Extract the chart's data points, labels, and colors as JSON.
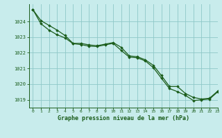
{
  "title": "Graphe pression niveau de la mer (hPa)",
  "background_color": "#c8ecec",
  "grid_color": "#8ec8c8",
  "line_color": "#1a5c1a",
  "marker_color": "#1a5c1a",
  "xlim": [
    -0.5,
    23
  ],
  "ylim": [
    1018.5,
    1025.1
  ],
  "yticks": [
    1019,
    1020,
    1021,
    1022,
    1023,
    1024
  ],
  "xticks": [
    0,
    1,
    2,
    3,
    4,
    5,
    6,
    7,
    8,
    9,
    10,
    11,
    12,
    13,
    14,
    15,
    16,
    17,
    18,
    19,
    20,
    21,
    22,
    23
  ],
  "series1_x": [
    0,
    1,
    2,
    3,
    4,
    5,
    6,
    7,
    8,
    9,
    10,
    11,
    12,
    13,
    14,
    15,
    16,
    17,
    18,
    19,
    20,
    21,
    22,
    23
  ],
  "series1_y": [
    1024.75,
    1024.05,
    1023.75,
    1023.45,
    1023.1,
    1022.6,
    1022.6,
    1022.5,
    1022.45,
    1022.55,
    1022.65,
    1022.35,
    1021.8,
    1021.75,
    1021.55,
    1021.2,
    1020.55,
    1019.85,
    1019.85,
    1019.4,
    1019.15,
    1019.05,
    1019.1,
    1019.55
  ],
  "series2_x": [
    0,
    1,
    2,
    3,
    4,
    5,
    6,
    7,
    8,
    9,
    10,
    11,
    12,
    13,
    14,
    15,
    16,
    17,
    18,
    19,
    20,
    21,
    22,
    23
  ],
  "series2_y": [
    1024.75,
    1023.85,
    1023.45,
    1023.15,
    1022.95,
    1022.58,
    1022.52,
    1022.42,
    1022.4,
    1022.5,
    1022.6,
    1022.15,
    1021.72,
    1021.68,
    1021.48,
    1021.05,
    1020.38,
    1019.72,
    1019.52,
    1019.28,
    1018.95,
    1019.0,
    1019.05,
    1019.5
  ]
}
